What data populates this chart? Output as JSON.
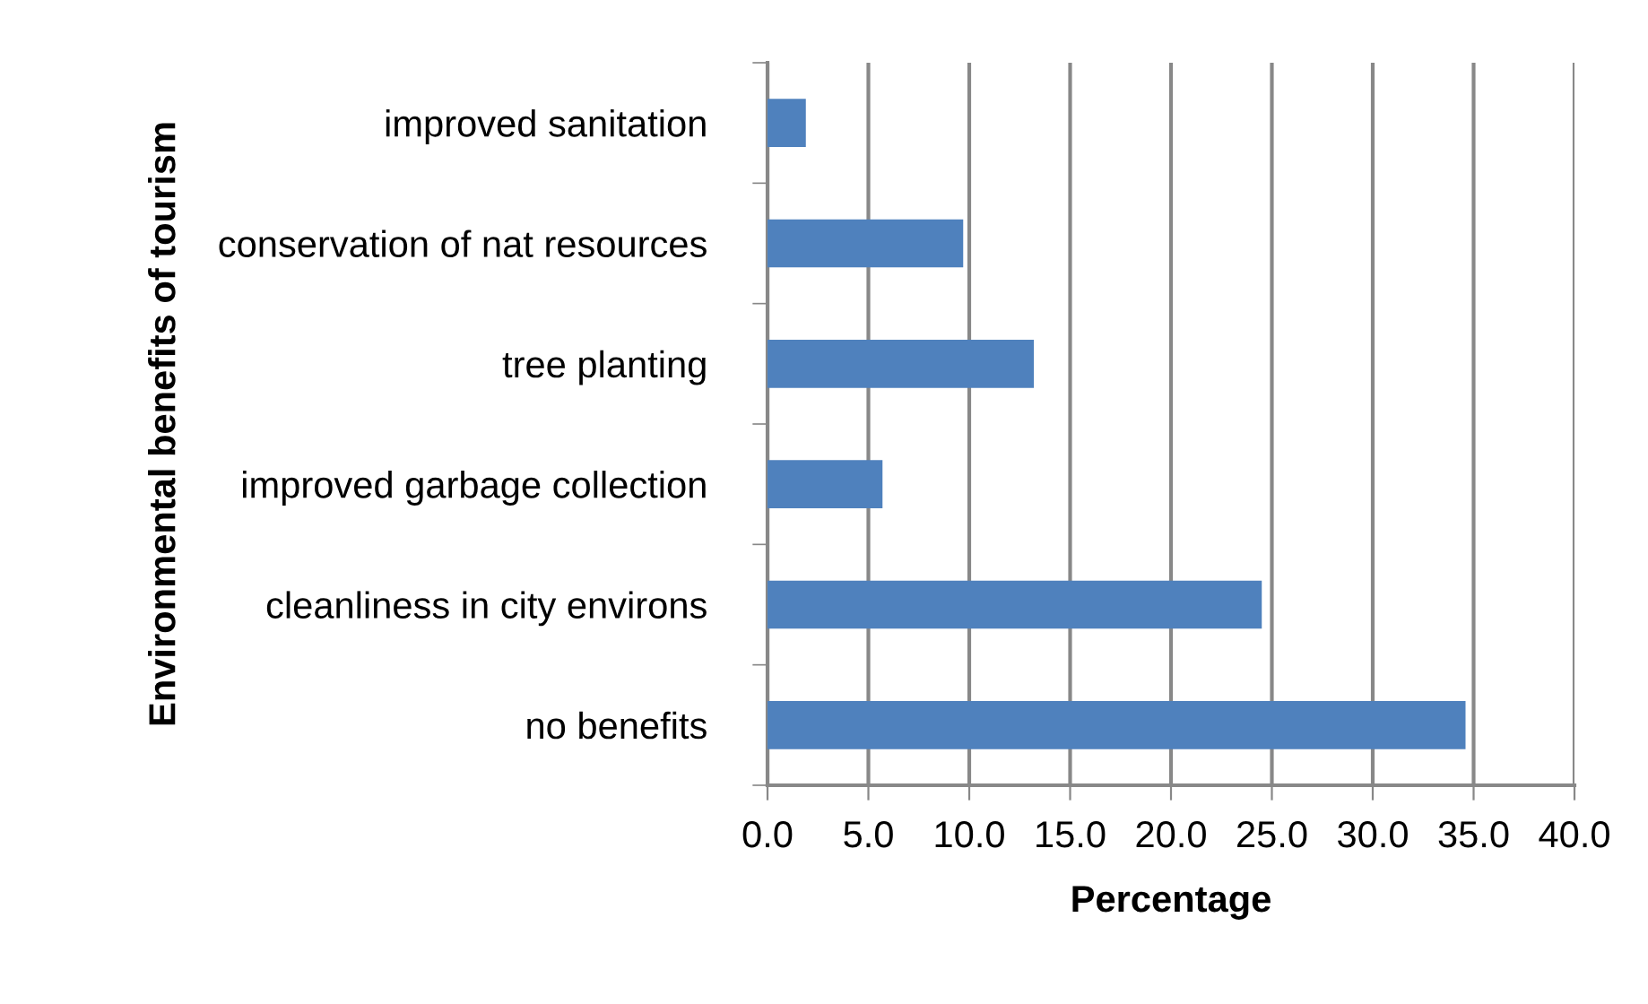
{
  "chart_data": {
    "type": "bar",
    "orientation": "horizontal",
    "xlabel": "Percentage",
    "ylabel": "Environmental benefits of tourism",
    "categories": [
      "improved sanitation",
      "conservation of nat resources",
      "tree planting",
      "improved garbage collection",
      "cleanliness in city environs",
      "no benefits"
    ],
    "values": [
      1.9,
      9.7,
      13.2,
      5.7,
      24.5,
      34.6
    ],
    "color": "#4f81bd",
    "xlim": [
      0,
      40
    ],
    "xticks": [
      {
        "value": 0,
        "label": "0.0"
      },
      {
        "value": 5,
        "label": "5.0"
      },
      {
        "value": 10,
        "label": "10.0"
      },
      {
        "value": 15,
        "label": "15.0"
      },
      {
        "value": 20,
        "label": "20.0"
      },
      {
        "value": 25,
        "label": "25.0"
      },
      {
        "value": 30,
        "label": "30.0"
      },
      {
        "value": 35,
        "label": "35.0"
      },
      {
        "value": 40,
        "label": "40.0"
      }
    ],
    "grid": "x",
    "legend": false
  }
}
